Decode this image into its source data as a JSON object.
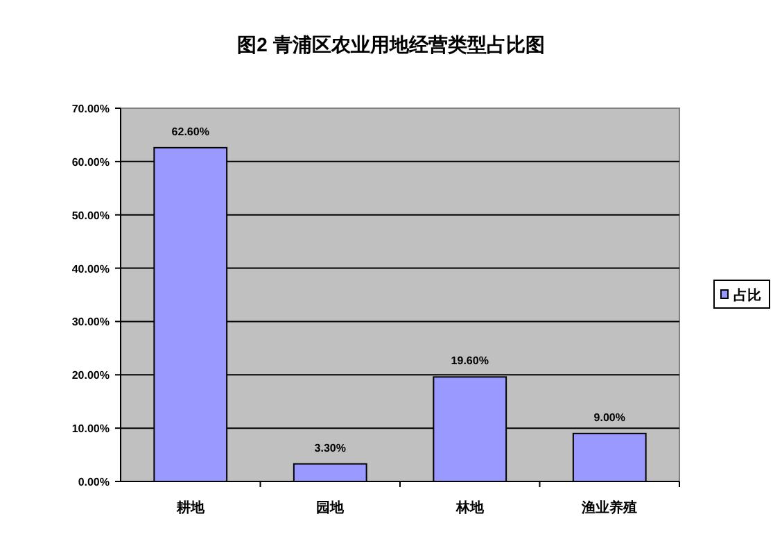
{
  "chart_data": {
    "type": "bar",
    "title": "图2 青浦区农业用地经营类型占比图",
    "categories": [
      "耕地",
      "园地",
      "林地",
      "渔业养殖"
    ],
    "series": [
      {
        "name": "占比",
        "color": "#9999ff",
        "values": [
          62.6,
          3.3,
          19.6,
          9.0
        ],
        "value_labels": [
          "62.60%",
          "3.30%",
          "19.60%",
          "9.00%"
        ]
      }
    ],
    "ylim": [
      0,
      70
    ],
    "yticks": [
      {
        "value": 0,
        "label": "0.00%"
      },
      {
        "value": 10,
        "label": "10.00%"
      },
      {
        "value": 20,
        "label": "20.00%"
      },
      {
        "value": 30,
        "label": "30.00%"
      },
      {
        "value": 40,
        "label": "40.00%"
      },
      {
        "value": 50,
        "label": "50.00%"
      },
      {
        "value": 60,
        "label": "60.00%"
      },
      {
        "value": 70,
        "label": "70.00%"
      }
    ],
    "grid": "y",
    "legend": "right"
  }
}
